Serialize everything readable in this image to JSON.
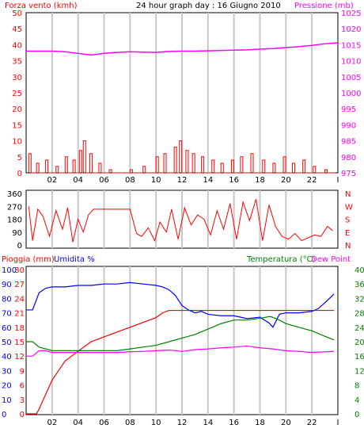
{
  "colors": {
    "wind": "#ff0000",
    "pressure": "#ff00ff",
    "direction": "#ff0000",
    "rain": "#ff0000",
    "humidity": "#0000ff",
    "temperature": "#008000",
    "dew_point": "#ff00ff",
    "grid": "#c8c8c8",
    "text": "#000000"
  },
  "chart_data": [
    {
      "type": "line",
      "title": "24 hour graph day : 16 Giugno 2010",
      "xlabel": "",
      "x_ticks": [
        "02",
        "04",
        "06",
        "08",
        "10",
        "12",
        "14",
        "16",
        "18",
        "20",
        "22"
      ],
      "left_axis": {
        "label": "Forza vento (kmh)",
        "ticks": [
          0,
          5,
          10,
          15,
          20,
          25,
          30,
          35,
          40,
          45,
          50
        ],
        "ylim": [
          0,
          50
        ]
      },
      "right_axis": {
        "label": "Pressione (mb)",
        "ticks": [
          975,
          980,
          985,
          990,
          995,
          1000,
          1005,
          1010,
          1015,
          1020,
          1025
        ],
        "ylim": [
          975,
          1025
        ]
      },
      "series": [
        {
          "name": "Forza vento (kmh)",
          "axis": "left",
          "x": [
            0.2,
            0.8,
            1.5,
            2.3,
            3.0,
            3.6,
            4.1,
            4.4,
            4.9,
            5.6,
            6.4,
            7.2,
            8.0,
            9.0,
            10.0,
            10.6,
            11.4,
            11.8,
            12.3,
            12.8,
            13.5,
            14.3,
            15.0,
            15.8,
            16.5,
            17.3,
            18.2,
            19.0,
            19.8,
            20.5,
            21.3,
            22.1,
            23.0,
            23.6
          ],
          "values": [
            6,
            3,
            4,
            2,
            5,
            4,
            7,
            10,
            6,
            3,
            1,
            0,
            1,
            2,
            5,
            6,
            8,
            10,
            7,
            6,
            5,
            4,
            3,
            4,
            5,
            6,
            4,
            3,
            5,
            3,
            4,
            2,
            1,
            0
          ]
        },
        {
          "name": "Pressione (mb)",
          "axis": "right",
          "x": [
            0,
            1,
            2,
            3,
            4,
            5,
            6,
            7,
            8,
            9,
            10,
            11,
            12,
            13,
            14,
            15,
            16,
            17,
            18,
            19,
            20,
            21,
            22,
            23,
            24
          ],
          "values": [
            1013.0,
            1013.0,
            1013.0,
            1012.8,
            1012.3,
            1011.8,
            1012.3,
            1012.6,
            1012.8,
            1012.7,
            1012.6,
            1012.9,
            1013.0,
            1013.0,
            1013.1,
            1013.2,
            1013.3,
            1013.4,
            1013.6,
            1013.8,
            1014.1,
            1014.4,
            1014.8,
            1015.3,
            1015.6
          ]
        }
      ]
    },
    {
      "type": "line",
      "xlabel": "",
      "x_ticks": [],
      "left_axis": {
        "label": "",
        "ticks": [
          0,
          90,
          180,
          270,
          360
        ],
        "ylim": [
          0,
          360
        ]
      },
      "right_axis": {
        "label": "",
        "ticks": [
          "N",
          "W",
          "S",
          "E",
          "N"
        ]
      },
      "series": [
        {
          "name": "",
          "x": [
            0.2,
            0.5,
            0.9,
            1.3,
            1.8,
            2.3,
            2.8,
            3.2,
            3.6,
            4.0,
            4.4,
            4.8,
            5.2,
            6.0,
            7.0,
            8.0,
            8.5,
            8.9,
            9.4,
            9.9,
            10.3,
            10.8,
            11.2,
            11.7,
            12.2,
            12.7,
            13.2,
            13.7,
            14.2,
            14.7,
            15.2,
            15.7,
            16.2,
            16.7,
            17.2,
            17.7,
            18.2,
            18.7,
            19.2,
            19.7,
            20.2,
            20.7,
            21.2,
            21.7,
            22.2,
            22.7,
            23.2,
            23.6
          ],
          "values": [
            270,
            30,
            250,
            200,
            60,
            240,
            110,
            260,
            20,
            180,
            90,
            210,
            250,
            250,
            250,
            250,
            80,
            60,
            120,
            30,
            160,
            90,
            250,
            40,
            260,
            140,
            210,
            180,
            70,
            240,
            110,
            290,
            40,
            300,
            170,
            320,
            30,
            280,
            130,
            60,
            40,
            80,
            30,
            50,
            70,
            60,
            130,
            100
          ]
        }
      ]
    },
    {
      "type": "line",
      "xlabel": "",
      "x_ticks": [
        "02",
        "04",
        "06",
        "08",
        "10",
        "12",
        "14",
        "16",
        "18",
        "20",
        "22"
      ],
      "left_axes": [
        {
          "label": "Pioggia (mm)",
          "ticks": [
            0,
            3,
            6,
            9,
            12,
            15,
            18,
            21,
            24,
            27,
            30
          ],
          "ylim": [
            0,
            30
          ]
        },
        {
          "label": "Umidita %",
          "ticks": [
            0,
            10,
            20,
            30,
            40,
            50,
            60,
            70,
            80,
            90,
            100
          ],
          "ylim": [
            0,
            100
          ]
        }
      ],
      "right_axes": [
        {
          "label": "Temperatura (°C)",
          "ticks": [
            0,
            4,
            8,
            12,
            16,
            20,
            24,
            28,
            32,
            36,
            40
          ],
          "ylim": [
            0,
            40
          ]
        },
        {
          "label": "Dew Point",
          "ticks": []
        }
      ],
      "series": [
        {
          "name": "Pioggia (mm)",
          "axis": "rain",
          "x": [
            0,
            0.8,
            1.0,
            1.5,
            2.0,
            2.5,
            3.0,
            3.5,
            4.0,
            5.0,
            6.0,
            7.0,
            8.0,
            9.0,
            10.0,
            10.5,
            11.0,
            12.0,
            14.0,
            16.0,
            18.0,
            20.0,
            22.0,
            23.7
          ],
          "values": [
            0,
            0,
            1,
            4,
            7,
            9,
            11,
            12,
            13,
            15,
            16,
            17,
            18,
            19,
            20,
            21,
            21.5,
            21.5,
            21.5,
            21.5,
            21.5,
            21.5,
            21.5,
            21.5
          ]
        },
        {
          "name": "Umidita %",
          "axis": "humidity",
          "x": [
            0,
            0.5,
            1.0,
            1.5,
            2.0,
            3.0,
            4.0,
            5.0,
            6.0,
            7.0,
            8.0,
            9.0,
            10.0,
            10.5,
            11.0,
            11.5,
            12.0,
            12.5,
            13.0,
            13.5,
            14.0,
            15.0,
            16.0,
            17.0,
            18.0,
            18.7,
            19.0,
            19.5,
            20.0,
            21.0,
            22.0,
            22.5,
            23.0,
            23.7
          ],
          "values": [
            72,
            72,
            84,
            87,
            88,
            88,
            89,
            89,
            90,
            90,
            91,
            90,
            89,
            88,
            86,
            82,
            75,
            72,
            70,
            71,
            69,
            68,
            68,
            66,
            67,
            63,
            60,
            69,
            70,
            70,
            71,
            73,
            77,
            83
          ]
        },
        {
          "name": "Temperatura (°C)",
          "axis": "temp",
          "x": [
            0,
            0.5,
            1.0,
            1.5,
            2.0,
            3.0,
            4.0,
            5.0,
            6.0,
            7.0,
            8.0,
            9.0,
            10.0,
            11.0,
            12.0,
            13.0,
            14.0,
            15.0,
            16.0,
            17.0,
            18.0,
            18.8,
            19.5,
            20.0,
            21.0,
            22.0,
            23.0,
            23.7
          ],
          "values": [
            20,
            20,
            18.5,
            18,
            17.5,
            17.5,
            17.5,
            17.5,
            17.5,
            17.5,
            18,
            18.5,
            19,
            20,
            21,
            22,
            23.5,
            25,
            26,
            26,
            26.5,
            27,
            26,
            25,
            24,
            23,
            21.5,
            20.5
          ]
        },
        {
          "name": "Dew Point",
          "axis": "temp",
          "x": [
            0,
            0.5,
            1.0,
            1.5,
            2.0,
            3.0,
            4.0,
            5.0,
            6.0,
            7.0,
            8.0,
            9.0,
            10.0,
            11.0,
            12.0,
            13.0,
            14.0,
            15.0,
            16.0,
            17.0,
            18.0,
            19.0,
            20.0,
            21.0,
            22.0,
            23.0,
            23.7
          ],
          "values": [
            16,
            16,
            17.5,
            17.5,
            17,
            17,
            17,
            17,
            17,
            17,
            17.2,
            17.3,
            17.5,
            17.7,
            17.3,
            17.8,
            18,
            18.3,
            18.5,
            18.8,
            18.3,
            18,
            17.5,
            17.3,
            17,
            17.2,
            17.3
          ]
        }
      ]
    }
  ]
}
